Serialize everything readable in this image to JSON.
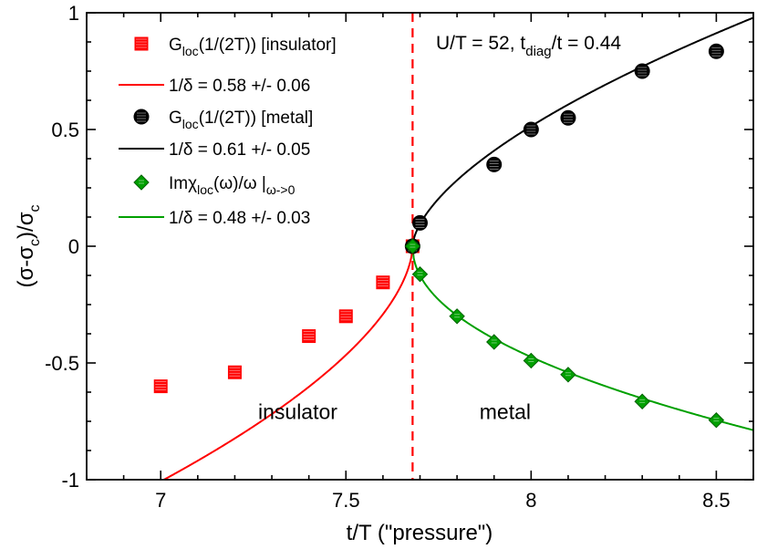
{
  "chart_data": {
    "type": "scatter",
    "xlabel": "t/T (\"pressure\")",
    "ylabel": "(σ-σc)/σc",
    "xlim": [
      6.8,
      8.6
    ],
    "ylim": [
      -1,
      1
    ],
    "x_ticks": [
      7,
      7.5,
      8,
      8.5
    ],
    "x_tick_labels": [
      "7",
      "7.5",
      "8",
      "8.5"
    ],
    "y_ticks": [
      1,
      0.5,
      0,
      -0.5,
      -1
    ],
    "y_tick_labels": [
      "1",
      "0.5",
      "0",
      "-0.5",
      "-1"
    ],
    "critical_x": 7.68,
    "annotation": {
      "main": "U/T = 52, t",
      "sub": "diag",
      "tail": "/t = 0.44"
    },
    "region_labels": [
      {
        "name": "insulator",
        "x": 7.37,
        "y": -0.74
      },
      {
        "name": "metal",
        "x": 7.93,
        "y": -0.74
      }
    ],
    "legend": [
      {
        "main": "G",
        "sub": "loc",
        "tail": "(1/(2T)) [insulator]",
        "kind": "square",
        "color": "#ff0000"
      },
      {
        "main": "1/δ = 0.58 +/- 0.06",
        "sub": "",
        "tail": "",
        "kind": "line",
        "color": "#ff0000"
      },
      {
        "main": "G",
        "sub": "loc",
        "tail": "(1/(2T)) [metal]",
        "kind": "circle",
        "color": "#000000"
      },
      {
        "main": "1/δ = 0.61 +/- 0.05",
        "sub": "",
        "tail": "",
        "kind": "line",
        "color": "#000000"
      },
      {
        "main": "Imχ",
        "sub": "loc",
        "tail": "(ω)/ω |",
        "sub2": "ω->0",
        "kind": "diamond",
        "color": "#00a000"
      },
      {
        "main": "1/δ = 0.48 +/- 0.03",
        "sub": "",
        "tail": "",
        "kind": "line",
        "color": "#00a000"
      }
    ],
    "series": [
      {
        "name": "Gloc(1/(2T)) [insulator]",
        "marker": "square",
        "color": "#ff0000",
        "x": [
          7.0,
          7.2,
          7.4,
          7.5,
          7.6,
          7.68
        ],
        "y": [
          -0.6,
          -0.54,
          -0.385,
          -0.3,
          -0.155,
          0.0
        ]
      },
      {
        "name": "Gloc(1/(2T)) [metal]",
        "marker": "circle",
        "color": "#000000",
        "x": [
          7.68,
          7.7,
          7.9,
          8.0,
          8.1,
          8.3,
          8.5
        ],
        "y": [
          0.0,
          0.1,
          0.35,
          0.5,
          0.55,
          0.75,
          0.835
        ]
      },
      {
        "name": "Imχloc(ω)/ω |ω->0",
        "marker": "diamond",
        "color": "#00a000",
        "x": [
          7.68,
          7.7,
          7.8,
          7.9,
          8.0,
          8.1,
          8.3,
          8.5
        ],
        "y": [
          0.0,
          -0.12,
          -0.3,
          -0.41,
          -0.49,
          -0.55,
          -0.665,
          -0.745
        ]
      }
    ],
    "fits": [
      {
        "name": "1/δ = 0.58 +/- 0.06",
        "color": "#ff0000",
        "side": "left",
        "xc": 7.68,
        "inv_delta": 0.58,
        "amp": 1.26,
        "x_range": [
          6.8,
          7.68
        ]
      },
      {
        "name": "1/δ = 0.61 +/- 0.05",
        "color": "#000000",
        "side": "right",
        "xc": 7.68,
        "inv_delta": 0.61,
        "amp": 1.03,
        "x_range": [
          7.68,
          8.6
        ]
      },
      {
        "name": "1/δ = 0.48 +/- 0.03",
        "color": "#00a000",
        "side": "right",
        "xc": 7.68,
        "inv_delta": 0.48,
        "amp": 0.82,
        "x_range": [
          7.68,
          8.6
        ]
      }
    ]
  }
}
